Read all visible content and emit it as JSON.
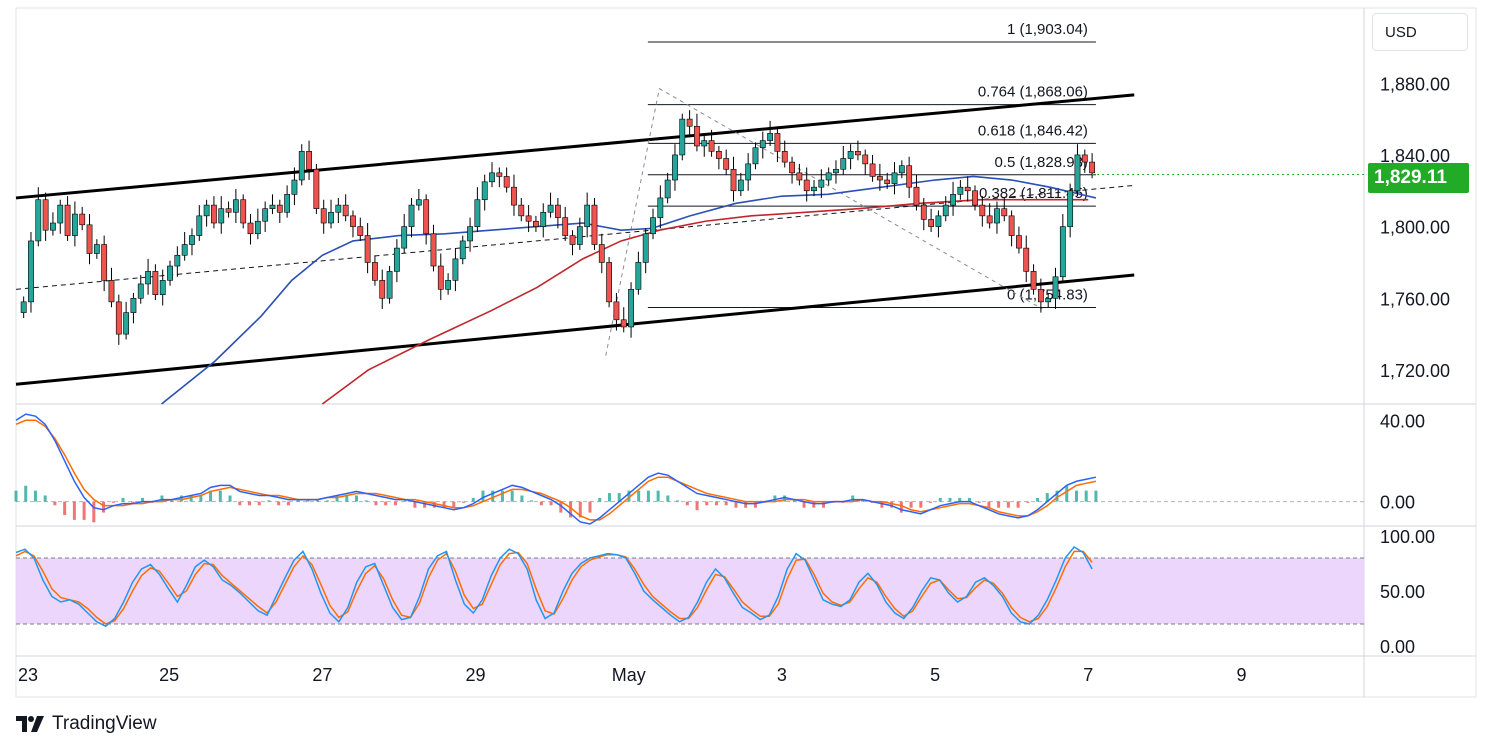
{
  "brand": {
    "logo": "tradingview-logo",
    "name": "TradingView"
  },
  "currency": "USD",
  "last_price": {
    "label": "1,829.11",
    "value": 1829.11,
    "color": "#22ab26"
  },
  "colors": {
    "up_candle": "#26a69a",
    "down_candle": "#ef5350",
    "ma_fast": "#2a4fb5",
    "ma_slow": "#c0262c",
    "macd": "#2962ff",
    "signal": "#ff6d00",
    "stoch_k": "#2196f3",
    "stoch_d": "#ff6d00",
    "stoch_band": "#e9cffb",
    "positive_badge": "#22ab26"
  },
  "chart_data": [
    {
      "type": "candlestick",
      "panel": "price",
      "x_tick_labels": [
        "23",
        "25",
        "27",
        "29",
        "May",
        "3",
        "5",
        "7",
        "9"
      ],
      "y_tick_labels": [
        "1,880.00",
        "1,840.00",
        "1,800.00",
        "1,760.00",
        "1,720.00"
      ],
      "y_ticks": [
        1880,
        1840,
        1800,
        1760,
        1720
      ],
      "ylim": [
        1701,
        1922
      ],
      "x_range_days": [
        23,
        40.6
      ],
      "fibonacci_levels": [
        {
          "label": "1 (1,903.04)",
          "value": 1903.04
        },
        {
          "label": "0.764 (1,868.06)",
          "value": 1868.06
        },
        {
          "label": "0.618 (1,846.42)",
          "value": 1846.42
        },
        {
          "label": "0.5 (1,828.93)",
          "value": 1828.93
        },
        {
          "label": "0.382 (1,811.45)",
          "value": 1811.45
        },
        {
          "label": "0 (1,754.83)",
          "value": 1754.83
        }
      ],
      "fib_range_x": [
        31.25,
        37.1
      ],
      "channel_upper": [
        [
          23,
          1816
        ],
        [
          37.6,
          1873.5
        ]
      ],
      "channel_lower": [
        [
          23,
          1712
        ],
        [
          37.6,
          1773
        ]
      ],
      "channel_mid": [
        [
          23,
          1765
        ],
        [
          37.6,
          1823
        ]
      ],
      "zigzag": [
        [
          30.7,
          1728
        ],
        [
          31.4,
          1877
        ],
        [
          36.4,
          1754
        ]
      ],
      "closes": [
        1758,
        1792,
        1815,
        1798,
        1802,
        1812,
        1795,
        1807,
        1801,
        1785,
        1790,
        1770,
        1758,
        1740,
        1752,
        1760,
        1768,
        1775,
        1762,
        1770,
        1778,
        1784,
        1790,
        1795,
        1806,
        1812,
        1802,
        1810,
        1808,
        1815,
        1802,
        1796,
        1803,
        1810,
        1812,
        1808,
        1818,
        1826,
        1842,
        1832,
        1810,
        1802,
        1808,
        1812,
        1806,
        1800,
        1795,
        1780,
        1770,
        1760,
        1775,
        1788,
        1800,
        1812,
        1815,
        1796,
        1778,
        1765,
        1770,
        1782,
        1792,
        1800,
        1815,
        1825,
        1830,
        1828,
        1822,
        1812,
        1806,
        1803,
        1800,
        1808,
        1812,
        1805,
        1795,
        1790,
        1800,
        1812,
        1790,
        1780,
        1758,
        1748,
        1744,
        1765,
        1780,
        1796,
        1805,
        1816,
        1826,
        1840,
        1860,
        1856,
        1845,
        1848,
        1842,
        1838,
        1832,
        1820,
        1826,
        1835,
        1844,
        1848,
        1852,
        1842,
        1836,
        1830,
        1826,
        1820,
        1822,
        1826,
        1830,
        1832,
        1838,
        1842,
        1840,
        1835,
        1828,
        1826,
        1824,
        1830,
        1834,
        1822,
        1812,
        1804,
        1800,
        1806,
        1812,
        1818,
        1822,
        1820,
        1812,
        1806,
        1802,
        1810,
        1806,
        1795,
        1788,
        1775,
        1765,
        1758,
        1760,
        1772,
        1800,
        1820,
        1840,
        1836,
        1830
      ],
      "ma_fast": [
        [
          23.0,
          null
        ],
        [
          24.9,
          1700
        ],
        [
          25.6,
          1725
        ],
        [
          26.2,
          1750
        ],
        [
          26.6,
          1770
        ],
        [
          27.0,
          1784
        ],
        [
          27.4,
          1792
        ],
        [
          28.0,
          1795
        ],
        [
          28.6,
          1796
        ],
        [
          29.2,
          1798
        ],
        [
          29.8,
          1800
        ],
        [
          30.4,
          1802
        ],
        [
          30.9,
          1798
        ],
        [
          31.3,
          1799
        ],
        [
          31.8,
          1806
        ],
        [
          32.4,
          1813
        ],
        [
          33.0,
          1817
        ],
        [
          33.6,
          1818
        ],
        [
          34.3,
          1822
        ],
        [
          35.0,
          1826
        ],
        [
          35.5,
          1828
        ],
        [
          36.0,
          1826
        ],
        [
          36.5,
          1822
        ],
        [
          36.9,
          1818
        ],
        [
          37.1,
          1816
        ]
      ],
      "ma_slow": [
        [
          23.0,
          null
        ],
        [
          27.0,
          1701
        ],
        [
          27.6,
          1720
        ],
        [
          28.4,
          1737
        ],
        [
          29.2,
          1753
        ],
        [
          29.8,
          1766
        ],
        [
          30.4,
          1782
        ],
        [
          30.9,
          1792
        ],
        [
          31.4,
          1798
        ],
        [
          32.0,
          1803
        ],
        [
          32.6,
          1806
        ],
        [
          33.3,
          1808
        ],
        [
          34.0,
          1810
        ],
        [
          34.8,
          1813
        ],
        [
          35.6,
          1815
        ],
        [
          36.3,
          1815
        ],
        [
          37.0,
          1815
        ]
      ]
    },
    {
      "type": "line",
      "panel": "macd",
      "y_tick_labels": [
        "40.00",
        "0.00"
      ],
      "ylim": [
        -12,
        48
      ],
      "series": [
        {
          "values": [
            40,
            43,
            42,
            38,
            30,
            20,
            10,
            2,
            -3,
            -4,
            -2,
            -1,
            -1,
            0,
            0,
            1,
            1,
            2,
            3,
            4,
            7,
            8,
            8,
            5,
            4,
            3,
            3,
            2,
            1,
            1,
            1,
            1,
            2,
            3,
            4,
            5,
            4,
            3,
            2,
            1,
            1,
            0,
            -1,
            -2,
            -3,
            -4,
            -3,
            -1,
            2,
            4,
            6,
            8,
            7,
            5,
            3,
            1,
            -2,
            -6,
            -10,
            -11,
            -8,
            -4,
            0,
            4,
            8,
            12,
            14,
            13,
            10,
            7,
            4,
            3,
            2,
            1,
            0,
            -1,
            -1,
            0,
            1,
            2,
            1,
            0,
            -1,
            -1,
            0,
            0,
            1,
            1,
            0,
            -1,
            -2,
            -4,
            -5,
            -6,
            -4,
            -2,
            -1,
            0,
            0,
            -2,
            -4,
            -6,
            -7,
            -8,
            -7,
            -4,
            0,
            4,
            8,
            10,
            11,
            12
          ]
        },
        {
          "values": [
            38,
            40,
            40,
            37,
            31,
            23,
            14,
            6,
            1,
            -2,
            -2,
            -2,
            -1,
            -1,
            0,
            0,
            1,
            1,
            2,
            3,
            5,
            6,
            7,
            6,
            5,
            4,
            3,
            3,
            2,
            1,
            1,
            1,
            2,
            2,
            3,
            4,
            4,
            4,
            3,
            2,
            1,
            1,
            0,
            -1,
            -2,
            -3,
            -3,
            -2,
            0,
            2,
            4,
            6,
            6,
            5,
            4,
            2,
            0,
            -3,
            -7,
            -9,
            -9,
            -6,
            -2,
            2,
            6,
            10,
            12,
            12,
            10,
            8,
            6,
            4,
            3,
            2,
            1,
            0,
            0,
            0,
            0,
            1,
            1,
            1,
            0,
            0,
            0,
            0,
            0,
            1,
            0,
            0,
            -1,
            -2,
            -4,
            -5,
            -4,
            -3,
            -2,
            -1,
            -1,
            -2,
            -3,
            -5,
            -6,
            -7,
            -7,
            -5,
            -2,
            2,
            5,
            8,
            9,
            10
          ]
        }
      ]
    },
    {
      "type": "line",
      "panel": "stochastic",
      "y_tick_labels": [
        "100.00",
        "50.00",
        "0.00"
      ],
      "ylim": [
        0,
        100
      ],
      "band": [
        20,
        80
      ],
      "series": [
        {
          "values": [
            85,
            88,
            80,
            60,
            45,
            40,
            42,
            38,
            30,
            22,
            18,
            25,
            40,
            58,
            70,
            74,
            65,
            52,
            40,
            55,
            72,
            78,
            72,
            60,
            55,
            48,
            40,
            32,
            28,
            45,
            62,
            78,
            86,
            70,
            48,
            30,
            22,
            35,
            58,
            72,
            75,
            55,
            35,
            24,
            26,
            45,
            70,
            82,
            86,
            60,
            38,
            30,
            42,
            64,
            80,
            88,
            84,
            70,
            42,
            25,
            30,
            50,
            66,
            75,
            80,
            82,
            84,
            83,
            80,
            66,
            50,
            42,
            35,
            28,
            22,
            26,
            40,
            58,
            70,
            62,
            48,
            35,
            30,
            24,
            28,
            45,
            70,
            84,
            78,
            60,
            42,
            38,
            36,
            42,
            58,
            66,
            56,
            40,
            30,
            25,
            35,
            50,
            62,
            60,
            48,
            40,
            45,
            58,
            62,
            55,
            45,
            30,
            22,
            20,
            28,
            42,
            60,
            80,
            90,
            85,
            70
          ]
        },
        {
          "values": [
            82,
            86,
            82,
            68,
            52,
            44,
            42,
            40,
            34,
            26,
            20,
            23,
            34,
            50,
            64,
            71,
            68,
            57,
            45,
            50,
            65,
            75,
            74,
            64,
            57,
            50,
            43,
            36,
            30,
            40,
            56,
            72,
            82,
            74,
            56,
            37,
            26,
            31,
            50,
            66,
            73,
            61,
            42,
            28,
            26,
            39,
            62,
            78,
            84,
            68,
            46,
            34,
            38,
            56,
            74,
            84,
            85,
            75,
            52,
            32,
            29,
            43,
            60,
            72,
            78,
            81,
            83,
            83,
            81,
            70,
            56,
            45,
            38,
            31,
            25,
            25,
            35,
            51,
            65,
            63,
            52,
            40,
            33,
            27,
            27,
            38,
            61,
            78,
            79,
            65,
            48,
            40,
            37,
            40,
            52,
            62,
            58,
            45,
            34,
            27,
            32,
            45,
            57,
            60,
            51,
            43,
            44,
            53,
            60,
            57,
            48,
            35,
            26,
            22,
            25,
            36,
            53,
            72,
            86,
            86,
            76
          ]
        }
      ]
    }
  ]
}
